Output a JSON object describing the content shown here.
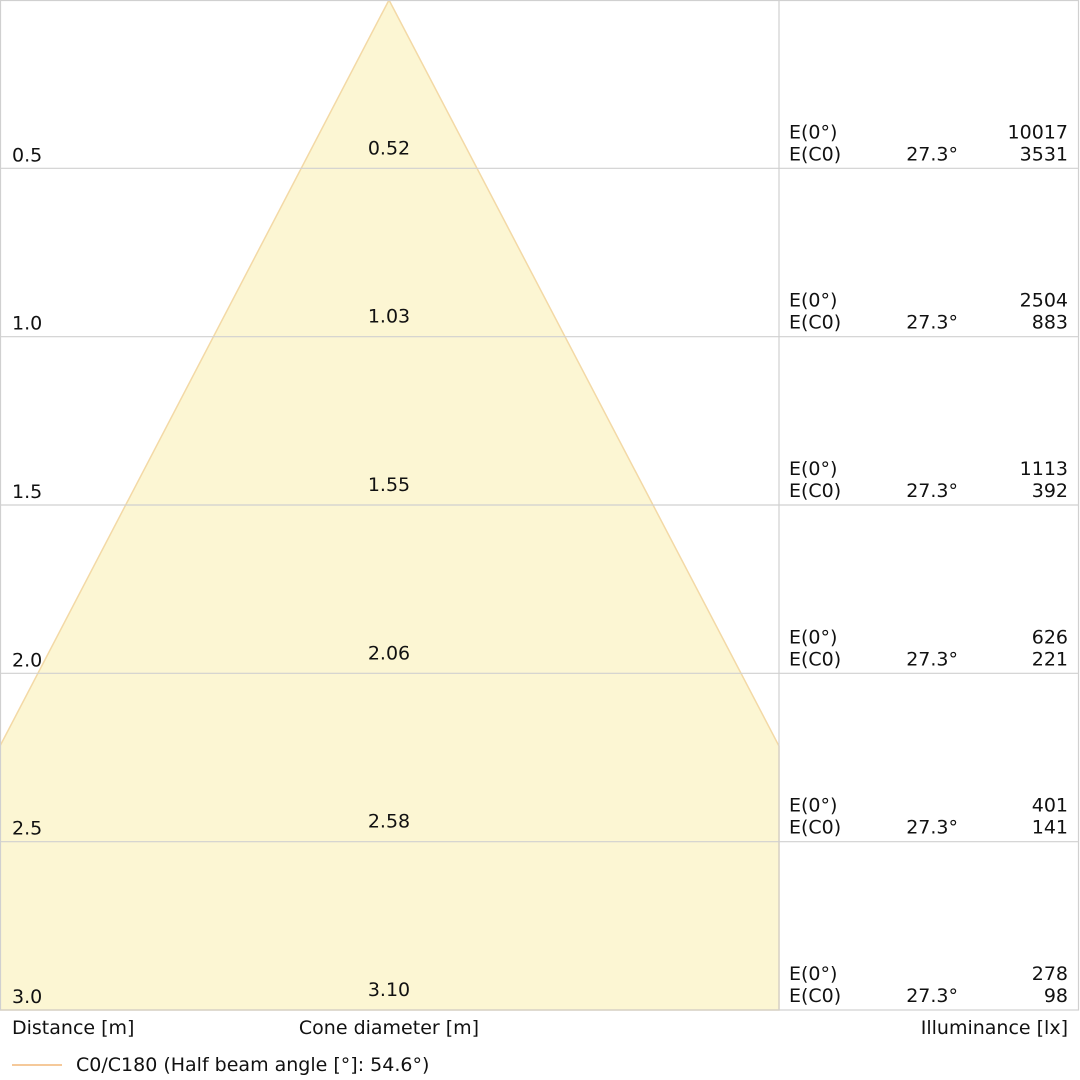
{
  "rows": [
    {
      "distance": "0.5",
      "diameter": "0.52",
      "e0_label": "E(0°)",
      "ec0_label": "E(C0)",
      "angle": "27.3°",
      "e0": "10017",
      "ec0": "3531"
    },
    {
      "distance": "1.0",
      "diameter": "1.03",
      "e0_label": "E(0°)",
      "ec0_label": "E(C0)",
      "angle": "27.3°",
      "e0": "2504",
      "ec0": "883"
    },
    {
      "distance": "1.5",
      "diameter": "1.55",
      "e0_label": "E(0°)",
      "ec0_label": "E(C0)",
      "angle": "27.3°",
      "e0": "1113",
      "ec0": "392"
    },
    {
      "distance": "2.0",
      "diameter": "2.06",
      "e0_label": "E(0°)",
      "ec0_label": "E(C0)",
      "angle": "27.3°",
      "e0": "626",
      "ec0": "221"
    },
    {
      "distance": "2.5",
      "diameter": "2.58",
      "e0_label": "E(0°)",
      "ec0_label": "E(C0)",
      "angle": "27.3°",
      "e0": "401",
      "ec0": "141"
    },
    {
      "distance": "3.0",
      "diameter": "3.10",
      "e0_label": "E(0°)",
      "ec0_label": "E(C0)",
      "angle": "27.3°",
      "e0": "278",
      "ec0": "98"
    }
  ],
  "footer": {
    "distance_label": "Distance [m]",
    "diameter_label": "Cone diameter [m]",
    "illuminance_label": "Illuminance [lx]"
  },
  "legend": {
    "label": "C0/C180 (Half beam angle [°]: 54.6°)"
  }
}
